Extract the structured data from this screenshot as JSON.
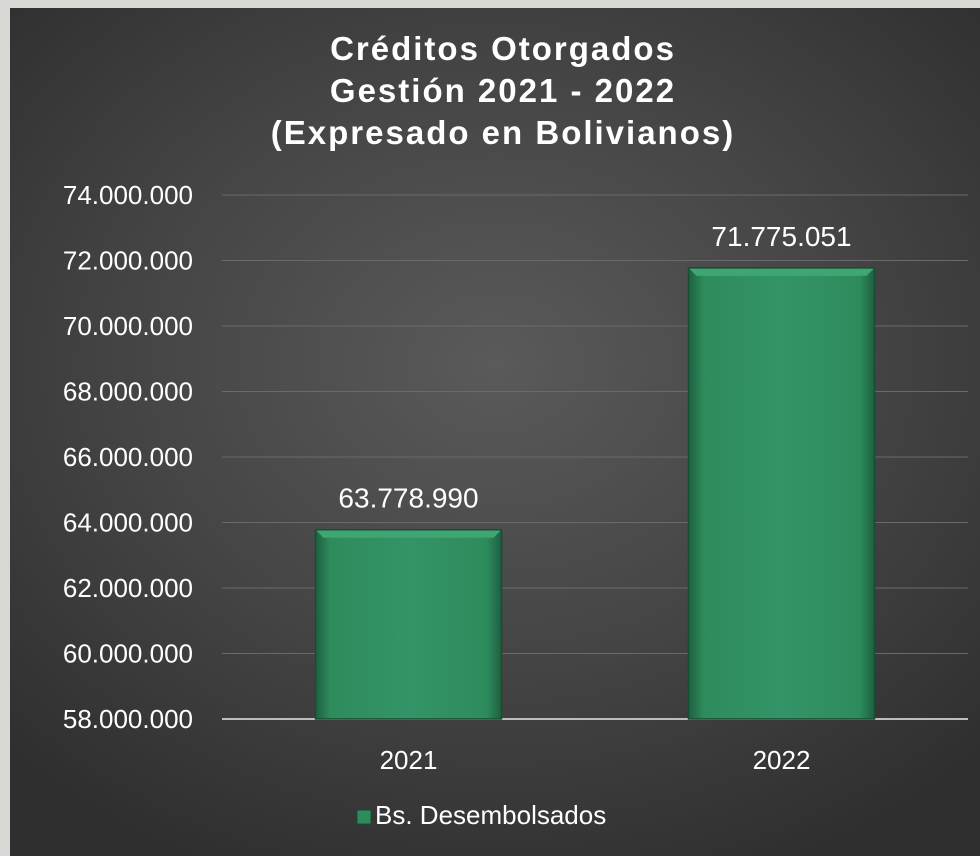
{
  "chart_data": {
    "type": "bar",
    "title_lines": [
      "Créditos Otorgados",
      "Gestión 2021 - 2022",
      "(Expresado en Bolivianos)"
    ],
    "categories": [
      "2021",
      "2022"
    ],
    "series": [
      {
        "name": "Bs. Desembolsados",
        "values": [
          63778990,
          71775051
        ]
      }
    ],
    "data_labels": [
      "63.778.990",
      "71.775.051"
    ],
    "ylim": [
      58000000,
      74000000
    ],
    "yticks": [
      58000000,
      60000000,
      62000000,
      64000000,
      66000000,
      68000000,
      70000000,
      72000000,
      74000000
    ],
    "ytick_labels": [
      "58.000.000",
      "60.000.000",
      "62.000.000",
      "64.000.000",
      "66.000.000",
      "68.000.000",
      "70.000.000",
      "72.000.000",
      "74.000.000"
    ],
    "grid": true,
    "legend_position": "bottom",
    "colors": {
      "bar": "#2e8b5c",
      "bar_light": "#3fa572",
      "bar_dark": "#1d6040",
      "background": "#444444"
    }
  }
}
